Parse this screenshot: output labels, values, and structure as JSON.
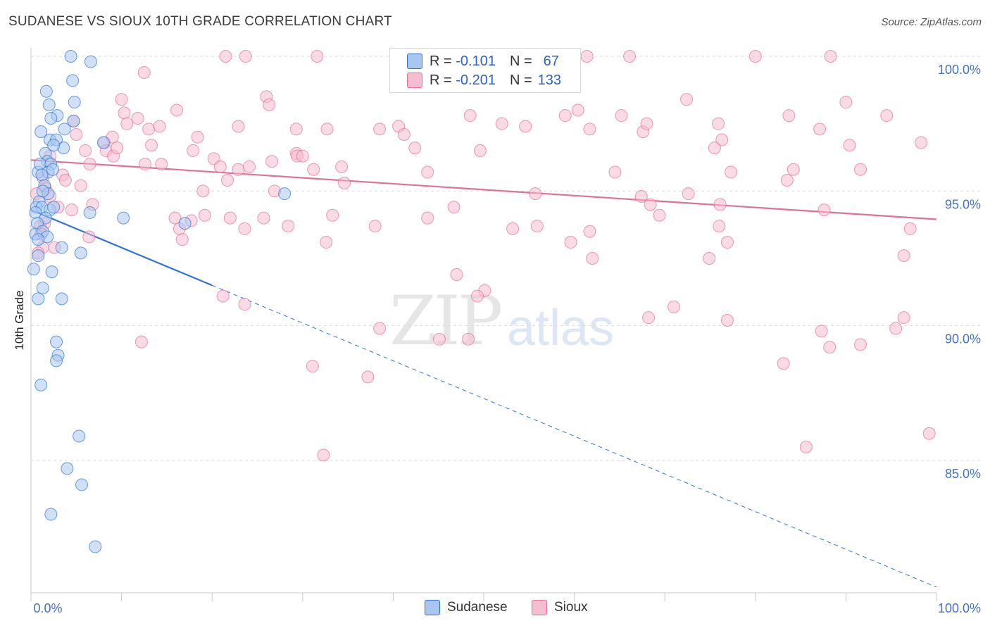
{
  "title": "SUDANESE VS SIOUX 10TH GRADE CORRELATION CHART",
  "source": "Source: ZipAtlas.com",
  "watermark": {
    "zip": "ZIP",
    "atlas": "atlas"
  },
  "colors": {
    "sudanese": "#2f73d4",
    "sioux": "#e0709a",
    "sudanese_fill": "#a9c6f0",
    "sioux_fill": "#f6bcd0"
  },
  "legend": {
    "rows": [
      {
        "r_label": "R =",
        "r_value": "-0.101",
        "n_label": "N =",
        "n_value": "67"
      },
      {
        "r_label": "R =",
        "r_value": "-0.201",
        "n_label": "N =",
        "n_value": "133"
      }
    ]
  },
  "bottom_legend": [
    "Sudanese",
    "Sioux"
  ],
  "chart_data": {
    "type": "scatter",
    "title": "SUDANESE VS SIOUX 10TH GRADE CORRELATION CHART",
    "xlabel": "",
    "ylabel": "10th Grade",
    "xlim": [
      0,
      100
    ],
    "ylim": [
      80.5,
      101.5
    ],
    "x_tick_labels": [
      "0.0%",
      "100.0%"
    ],
    "y_ticks": [
      85,
      90,
      95,
      100
    ],
    "y_tick_labels": [
      "85.0%",
      "90.0%",
      "95.0%",
      "100.0%"
    ],
    "grid": true,
    "legend_position": "top-center",
    "series": [
      {
        "name": "Sudanese",
        "points": [
          [
            4.4,
            100.0
          ],
          [
            6.6,
            99.8
          ],
          [
            4.6,
            99.1
          ],
          [
            1.7,
            98.7
          ],
          [
            2.0,
            98.2
          ],
          [
            4.8,
            98.3
          ],
          [
            2.9,
            97.8
          ],
          [
            2.2,
            97.7
          ],
          [
            4.7,
            97.6
          ],
          [
            1.1,
            97.2
          ],
          [
            3.7,
            97.3
          ],
          [
            2.1,
            96.9
          ],
          [
            2.8,
            96.9
          ],
          [
            1.6,
            96.4
          ],
          [
            3.6,
            96.6
          ],
          [
            8.0,
            96.8
          ],
          [
            2.5,
            96.7
          ],
          [
            1.8,
            96.1
          ],
          [
            0.8,
            95.7
          ],
          [
            1.0,
            96.0
          ],
          [
            2.2,
            96.0
          ],
          [
            1.9,
            95.7
          ],
          [
            2.4,
            95.8
          ],
          [
            1.2,
            95.6
          ],
          [
            1.5,
            95.2
          ],
          [
            1.9,
            94.9
          ],
          [
            0.9,
            94.6
          ],
          [
            1.3,
            95.0
          ],
          [
            0.6,
            94.4
          ],
          [
            1.2,
            94.4
          ],
          [
            2.1,
            94.3
          ],
          [
            2.5,
            94.4
          ],
          [
            0.5,
            94.2
          ],
          [
            6.5,
            94.2
          ],
          [
            1.6,
            94.0
          ],
          [
            10.2,
            94.0
          ],
          [
            0.7,
            93.8
          ],
          [
            0.5,
            93.4
          ],
          [
            1.3,
            93.5
          ],
          [
            1.8,
            93.3
          ],
          [
            0.8,
            93.2
          ],
          [
            3.4,
            92.9
          ],
          [
            5.5,
            92.7
          ],
          [
            0.8,
            92.6
          ],
          [
            0.3,
            92.1
          ],
          [
            2.3,
            92.0
          ],
          [
            1.3,
            91.4
          ],
          [
            0.8,
            91.0
          ],
          [
            3.4,
            91.0
          ],
          [
            28.0,
            94.9
          ],
          [
            17.0,
            93.8
          ],
          [
            2.8,
            89.4
          ],
          [
            3.0,
            88.9
          ],
          [
            2.8,
            88.7
          ],
          [
            1.1,
            87.8
          ],
          [
            5.3,
            85.9
          ],
          [
            4.0,
            84.7
          ],
          [
            5.6,
            84.1
          ],
          [
            2.2,
            83.0
          ],
          [
            7.1,
            81.8
          ]
        ],
        "trend": {
          "x0": 0,
          "y0": 94.3,
          "x1": 100,
          "y1": 80.3,
          "solid_until_x": 20
        }
      },
      {
        "name": "Sioux",
        "points": [
          [
            21.5,
            100.0
          ],
          [
            23.7,
            100.0
          ],
          [
            31.6,
            100.0
          ],
          [
            43.1,
            100.0
          ],
          [
            46.9,
            100.0
          ],
          [
            61.4,
            100.0
          ],
          [
            66.1,
            100.0
          ],
          [
            80.0,
            100.0
          ],
          [
            88.3,
            100.0
          ],
          [
            12.5,
            99.4
          ],
          [
            26.0,
            98.5
          ],
          [
            26.3,
            98.2
          ],
          [
            10.0,
            98.4
          ],
          [
            16.1,
            98.0
          ],
          [
            10.3,
            97.9
          ],
          [
            11.8,
            97.7
          ],
          [
            10.6,
            97.5
          ],
          [
            4.7,
            97.6
          ],
          [
            13.0,
            97.3
          ],
          [
            14.2,
            97.4
          ],
          [
            22.9,
            97.4
          ],
          [
            29.3,
            97.3
          ],
          [
            32.7,
            97.3
          ],
          [
            38.5,
            97.3
          ],
          [
            40.6,
            97.4
          ],
          [
            41.2,
            97.1
          ],
          [
            48.5,
            97.8
          ],
          [
            54.6,
            97.4
          ],
          [
            52.0,
            97.5
          ],
          [
            59.0,
            97.8
          ],
          [
            60.4,
            98.0
          ],
          [
            61.7,
            97.3
          ],
          [
            65.2,
            97.8
          ],
          [
            67.6,
            97.2
          ],
          [
            72.4,
            98.4
          ],
          [
            68.0,
            97.5
          ],
          [
            75.9,
            97.5
          ],
          [
            76.3,
            96.9
          ],
          [
            83.7,
            97.8
          ],
          [
            87.1,
            97.3
          ],
          [
            90.0,
            98.3
          ],
          [
            94.5,
            97.8
          ],
          [
            5.0,
            97.1
          ],
          [
            6.0,
            96.5
          ],
          [
            8.1,
            96.8
          ],
          [
            9.0,
            97.0
          ],
          [
            8.3,
            96.5
          ],
          [
            9.1,
            96.3
          ],
          [
            9.5,
            96.6
          ],
          [
            12.6,
            96.0
          ],
          [
            13.3,
            96.7
          ],
          [
            17.9,
            96.5
          ],
          [
            18.4,
            97.0
          ],
          [
            20.2,
            96.2
          ],
          [
            26.6,
            96.1
          ],
          [
            29.3,
            96.4
          ],
          [
            29.4,
            96.3
          ],
          [
            30.0,
            96.3
          ],
          [
            42.4,
            96.6
          ],
          [
            49.6,
            96.5
          ],
          [
            75.5,
            96.6
          ],
          [
            90.4,
            96.7
          ],
          [
            98.3,
            96.8
          ],
          [
            2.1,
            96.3
          ],
          [
            3.5,
            95.6
          ],
          [
            6.5,
            96.0
          ],
          [
            14.4,
            96.0
          ],
          [
            20.9,
            95.9
          ],
          [
            22.9,
            95.8
          ],
          [
            24.1,
            95.9
          ],
          [
            31.2,
            95.8
          ],
          [
            34.3,
            95.9
          ],
          [
            3.8,
            95.4
          ],
          [
            5.5,
            95.2
          ],
          [
            19.0,
            95.0
          ],
          [
            21.7,
            95.4
          ],
          [
            26.9,
            95.0
          ],
          [
            34.6,
            95.3
          ],
          [
            43.8,
            95.7
          ],
          [
            64.5,
            95.7
          ],
          [
            77.3,
            95.7
          ],
          [
            84.2,
            95.8
          ],
          [
            91.6,
            95.8
          ],
          [
            1.3,
            95.5
          ],
          [
            1.6,
            95.1
          ],
          [
            0.6,
            94.9
          ],
          [
            2.1,
            94.8
          ],
          [
            3.0,
            94.4
          ],
          [
            4.5,
            94.3
          ],
          [
            6.8,
            94.5
          ],
          [
            15.9,
            94.0
          ],
          [
            17.7,
            93.9
          ],
          [
            19.2,
            94.1
          ],
          [
            22.0,
            94.0
          ],
          [
            25.7,
            94.0
          ],
          [
            33.3,
            94.1
          ],
          [
            43.8,
            94.0
          ],
          [
            46.7,
            94.4
          ],
          [
            55.7,
            94.9
          ],
          [
            67.4,
            94.8
          ],
          [
            68.4,
            94.5
          ],
          [
            69.4,
            94.1
          ],
          [
            72.6,
            94.9
          ],
          [
            76.1,
            94.5
          ],
          [
            83.5,
            95.4
          ],
          [
            87.6,
            94.3
          ],
          [
            1.0,
            93.7
          ],
          [
            1.5,
            93.8
          ],
          [
            1.1,
            93.4
          ],
          [
            16.4,
            93.6
          ],
          [
            23.6,
            93.6
          ],
          [
            28.4,
            93.7
          ],
          [
            38.0,
            93.7
          ],
          [
            53.2,
            93.6
          ],
          [
            55.9,
            93.7
          ],
          [
            61.7,
            93.5
          ],
          [
            76.0,
            93.7
          ],
          [
            97.1,
            93.6
          ],
          [
            6.4,
            93.3
          ],
          [
            16.7,
            93.2
          ],
          [
            32.6,
            93.1
          ],
          [
            59.6,
            93.1
          ],
          [
            76.9,
            93.1
          ],
          [
            1.3,
            92.9
          ],
          [
            0.8,
            92.7
          ],
          [
            2.6,
            92.9
          ],
          [
            62.0,
            92.5
          ],
          [
            74.9,
            92.5
          ],
          [
            96.4,
            92.6
          ],
          [
            47.0,
            91.9
          ],
          [
            50.1,
            91.3
          ],
          [
            21.2,
            91.1
          ],
          [
            23.6,
            90.8
          ],
          [
            49.3,
            91.1
          ],
          [
            71.0,
            90.7
          ],
          [
            68.2,
            90.3
          ],
          [
            76.9,
            90.2
          ],
          [
            96.4,
            90.3
          ],
          [
            95.5,
            89.9
          ],
          [
            45.1,
            89.5
          ],
          [
            48.3,
            89.5
          ],
          [
            38.5,
            89.9
          ],
          [
            12.2,
            89.4
          ],
          [
            31.1,
            88.5
          ],
          [
            87.3,
            89.8
          ],
          [
            88.2,
            89.2
          ],
          [
            91.6,
            89.3
          ],
          [
            83.1,
            88.6
          ],
          [
            37.2,
            88.1
          ],
          [
            99.2,
            86.0
          ],
          [
            85.6,
            85.5
          ],
          [
            32.3,
            85.2
          ]
        ],
        "trend": {
          "x0": 0,
          "y0": 96.15,
          "x1": 100,
          "y1": 93.95
        }
      }
    ]
  }
}
